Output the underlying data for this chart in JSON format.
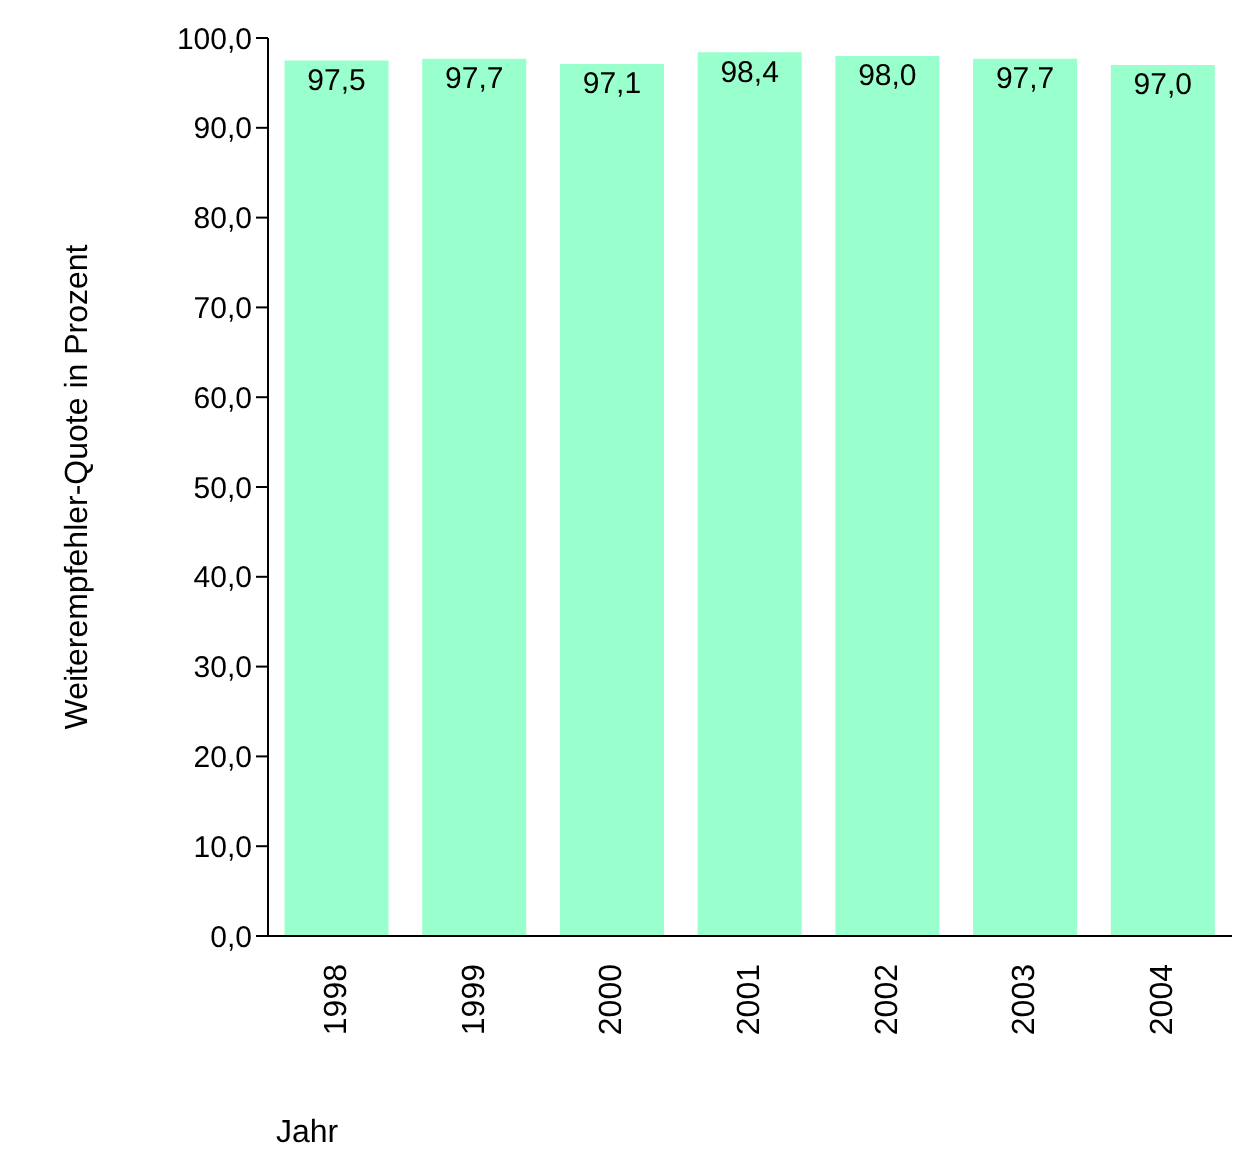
{
  "chart_data": {
    "type": "bar",
    "xlabel": "Jahr",
    "ylabel": "Weiterempfehler-Quote in Prozent",
    "categories": [
      "1998",
      "1999",
      "2000",
      "2001",
      "2002",
      "2003",
      "2004"
    ],
    "values": [
      97.5,
      97.7,
      97.1,
      98.4,
      98.0,
      97.7,
      97.0
    ],
    "value_labels": [
      "97,5",
      "97,7",
      "97,1",
      "98,4",
      "98,0",
      "97,7",
      "97,0"
    ],
    "color": "#99ffcc",
    "ylim": [
      0,
      100
    ],
    "yticks": [
      {
        "value": 0,
        "label": "0,0"
      },
      {
        "value": 10,
        "label": "10,0"
      },
      {
        "value": 20,
        "label": "20,0"
      },
      {
        "value": 30,
        "label": "30,0"
      },
      {
        "value": 40,
        "label": "40,0"
      },
      {
        "value": 50,
        "label": "50,0"
      },
      {
        "value": 60,
        "label": "60,0"
      },
      {
        "value": 70,
        "label": "70,0"
      },
      {
        "value": 80,
        "label": "80,0"
      },
      {
        "value": 90,
        "label": "90,0"
      },
      {
        "value": 100,
        "label": "100,0"
      }
    ],
    "grid": false,
    "legend": false
  }
}
